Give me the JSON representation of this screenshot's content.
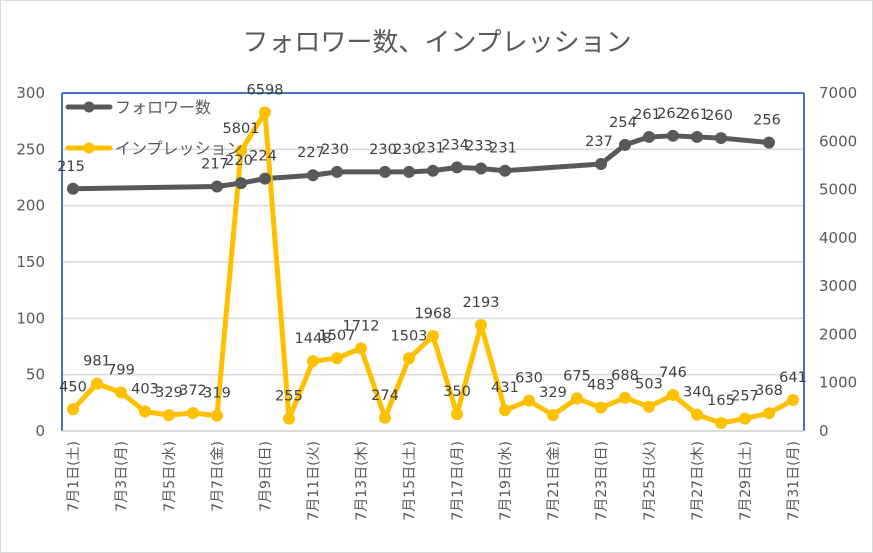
{
  "chart_data": {
    "type": "line",
    "title": "フォロワー数、インプレッション",
    "x": [
      1,
      2,
      3,
      4,
      5,
      6,
      7,
      8,
      9,
      10,
      11,
      12,
      13,
      14,
      15,
      16,
      17,
      18,
      19,
      20,
      21,
      22,
      23,
      24,
      25,
      26,
      27,
      28,
      29,
      30,
      31
    ],
    "xtick_labels": [
      "7月1日(土)",
      "7月3日(月)",
      "7月5日(水)",
      "7月7日(金)",
      "7月9日(日)",
      "7月11日(火)",
      "7月13日(木)",
      "7月15日(土)",
      "7月17日(月)",
      "7月19日(水)",
      "7月21日(金)",
      "7月23日(日)",
      "7月25日(火)",
      "7月27日(木)",
      "7月29日(土)",
      "7月31日(月)"
    ],
    "xtick_days": [
      1,
      3,
      5,
      7,
      9,
      11,
      13,
      15,
      17,
      19,
      21,
      23,
      25,
      27,
      29,
      31
    ],
    "y_left": {
      "range": [
        0,
        300
      ],
      "ticks": [
        0,
        50,
        100,
        150,
        200,
        250,
        300
      ],
      "tick_labels": [
        "0",
        "50",
        "100",
        "150",
        "200",
        "250",
        "300"
      ]
    },
    "y_right": {
      "range": [
        0,
        7000
      ],
      "ticks": [
        0,
        1000,
        2000,
        3000,
        4000,
        5000,
        6000,
        7000
      ],
      "tick_labels": [
        "0",
        "1000",
        "2000",
        "3000",
        "4000",
        "5000",
        "6000",
        "7000"
      ]
    },
    "grid": true,
    "legend_position": "top-left",
    "series": [
      {
        "name": "フォロワー数",
        "axis": "left",
        "color": "#595959",
        "points": [
          {
            "day": 1,
            "value": 215
          },
          {
            "day": 7,
            "value": 217
          },
          {
            "day": 8,
            "value": 220
          },
          {
            "day": 9,
            "value": 224
          },
          {
            "day": 11,
            "value": 227
          },
          {
            "day": 12,
            "value": 230
          },
          {
            "day": 14,
            "value": 230
          },
          {
            "day": 15,
            "value": 230
          },
          {
            "day": 16,
            "value": 231
          },
          {
            "day": 17,
            "value": 234
          },
          {
            "day": 18,
            "value": 233
          },
          {
            "day": 19,
            "value": 231
          },
          {
            "day": 23,
            "value": 237
          },
          {
            "day": 24,
            "value": 254
          },
          {
            "day": 25,
            "value": 261
          },
          {
            "day": 26,
            "value": 262
          },
          {
            "day": 27,
            "value": 261
          },
          {
            "day": 28,
            "value": 260
          },
          {
            "day": 30,
            "value": 256
          }
        ]
      },
      {
        "name": "インプレッション",
        "axis": "right",
        "color": "#FFC000",
        "points": [
          {
            "day": 1,
            "value": 450
          },
          {
            "day": 2,
            "value": 981
          },
          {
            "day": 3,
            "value": 799
          },
          {
            "day": 4,
            "value": 403
          },
          {
            "day": 5,
            "value": 329
          },
          {
            "day": 6,
            "value": 372
          },
          {
            "day": 7,
            "value": 319
          },
          {
            "day": 8,
            "value": 5801
          },
          {
            "day": 9,
            "value": 6598
          },
          {
            "day": 10,
            "value": 255
          },
          {
            "day": 11,
            "value": 1448
          },
          {
            "day": 12,
            "value": 1507
          },
          {
            "day": 13,
            "value": 1712
          },
          {
            "day": 14,
            "value": 274
          },
          {
            "day": 15,
            "value": 1503
          },
          {
            "day": 16,
            "value": 1968
          },
          {
            "day": 17,
            "value": 350
          },
          {
            "day": 18,
            "value": 2193
          },
          {
            "day": 19,
            "value": 431
          },
          {
            "day": 20,
            "value": 630
          },
          {
            "day": 21,
            "value": 329
          },
          {
            "day": 22,
            "value": 675
          },
          {
            "day": 23,
            "value": 483
          },
          {
            "day": 24,
            "value": 688
          },
          {
            "day": 25,
            "value": 503
          },
          {
            "day": 26,
            "value": 746
          },
          {
            "day": 27,
            "value": 340
          },
          {
            "day": 28,
            "value": 165
          },
          {
            "day": 29,
            "value": 257
          },
          {
            "day": 30,
            "value": 368
          },
          {
            "day": 31,
            "value": 641
          }
        ]
      }
    ],
    "colors": {
      "plot_border": "#4472C4",
      "gridline": "#D9D9D9",
      "label": "#404040"
    }
  }
}
